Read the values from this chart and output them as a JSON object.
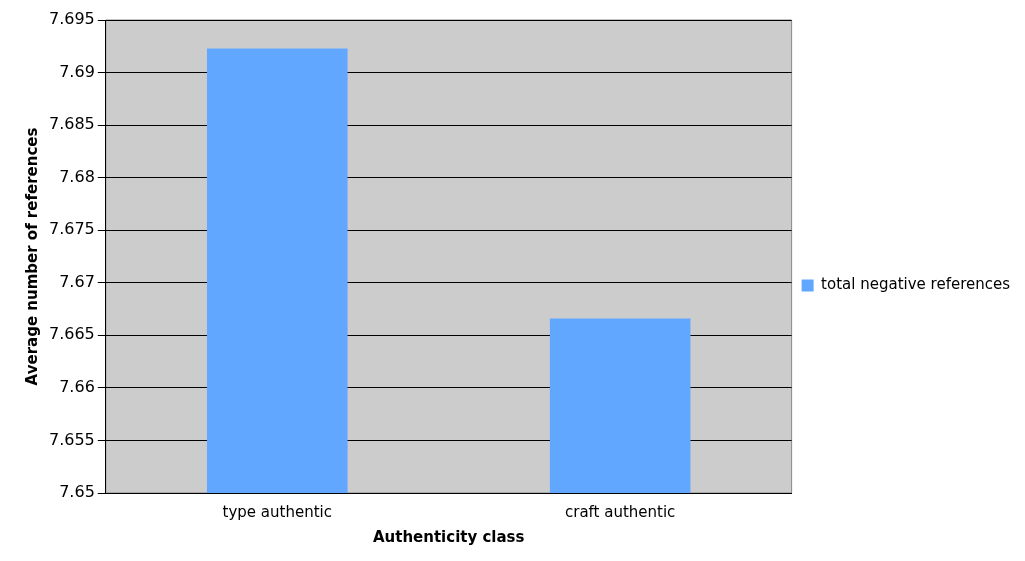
{
  "chart_data": {
    "type": "bar",
    "xlabel": "Authenticity class",
    "ylabel": "Average number of references",
    "categories": [
      "type authentic",
      "craft authentic"
    ],
    "series": [
      {
        "name": "total negative references",
        "color": "#62a7ff",
        "values": [
          7.6923,
          7.6666
        ]
      }
    ],
    "ylim": [
      7.65,
      7.695
    ],
    "yticks": [
      7.65,
      7.655,
      7.66,
      7.665,
      7.67,
      7.675,
      7.68,
      7.685,
      7.69,
      7.695
    ],
    "grid": "y",
    "legend": "right"
  }
}
